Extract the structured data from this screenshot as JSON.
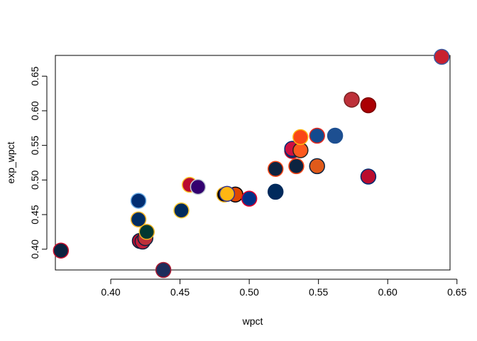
{
  "chart_data": {
    "type": "scatter",
    "title": "",
    "xlabel": "wpct",
    "ylabel": "exp_wpct",
    "xlim": [
      0.36,
      0.645
    ],
    "ylim": [
      0.37,
      0.68
    ],
    "xticks": [
      0.4,
      0.45,
      0.5,
      0.55,
      0.6,
      0.65
    ],
    "yticks": [
      0.4,
      0.45,
      0.5,
      0.55,
      0.6,
      0.65
    ],
    "xtick_labels": [
      "0.40",
      "0.45",
      "0.50",
      "0.55",
      "0.60",
      "0.65"
    ],
    "ytick_labels": [
      "0.40",
      "0.45",
      "0.50",
      "0.55",
      "0.60",
      "0.65"
    ],
    "grid": false,
    "points": [
      {
        "x": 0.364,
        "y": 0.398,
        "fill": "#0C2340",
        "stroke": "#C8102E"
      },
      {
        "x": 0.42,
        "y": 0.47,
        "fill": "#002D72",
        "stroke": "#6CACE4"
      },
      {
        "x": 0.42,
        "y": 0.443,
        "fill": "#002D62",
        "stroke": "#FDB827"
      },
      {
        "x": 0.421,
        "y": 0.412,
        "fill": "#BA0C2F",
        "stroke": "#0C2340"
      },
      {
        "x": 0.423,
        "y": 0.411,
        "fill": "#C41E3A",
        "stroke": "#0C2340"
      },
      {
        "x": 0.425,
        "y": 0.416,
        "fill": "#BD3039",
        "stroke": "#0C2340"
      },
      {
        "x": 0.426,
        "y": 0.425,
        "fill": "#003831",
        "stroke": "#EFB21E"
      },
      {
        "x": 0.438,
        "y": 0.37,
        "fill": "#1D2D5C",
        "stroke": "#A71930"
      },
      {
        "x": 0.451,
        "y": 0.456,
        "fill": "#002B5C",
        "stroke": "#FFC72C"
      },
      {
        "x": 0.457,
        "y": 0.493,
        "fill": "#BA0C2F",
        "stroke": "#FFC72C"
      },
      {
        "x": 0.463,
        "y": 0.49,
        "fill": "#33006F",
        "stroke": "#C4CED4"
      },
      {
        "x": 0.482,
        "y": 0.479,
        "fill": "#000000",
        "stroke": "#FDB827"
      },
      {
        "x": 0.49,
        "y": 0.479,
        "fill": "#DF4601",
        "stroke": "#000000"
      },
      {
        "x": 0.484,
        "y": 0.48,
        "fill": "#FFB612",
        "stroke": "#2E3192"
      },
      {
        "x": 0.5,
        "y": 0.473,
        "fill": "#003087",
        "stroke": "#E4002B"
      },
      {
        "x": 0.519,
        "y": 0.516,
        "fill": "#0C2340",
        "stroke": "#FA4616"
      },
      {
        "x": 0.519,
        "y": 0.483,
        "fill": "#002A5C",
        "stroke": "#002A5C"
      },
      {
        "x": 0.531,
        "y": 0.542,
        "fill": "#002D62",
        "stroke": "#C8102E"
      },
      {
        "x": 0.531,
        "y": 0.545,
        "fill": "#CE1141",
        "stroke": "#002D72"
      },
      {
        "x": 0.534,
        "y": 0.52,
        "fill": "#0C2340",
        "stroke": "#FA4616"
      },
      {
        "x": 0.537,
        "y": 0.543,
        "fill": "#FD5A1E",
        "stroke": "#27251F"
      },
      {
        "x": 0.537,
        "y": 0.562,
        "fill": "#FA4616",
        "stroke": "#FFB612"
      },
      {
        "x": 0.549,
        "y": 0.564,
        "fill": "#134A8E",
        "stroke": "#E8291C"
      },
      {
        "x": 0.549,
        "y": 0.52,
        "fill": "#E05A1A",
        "stroke": "#0C2340"
      },
      {
        "x": 0.562,
        "y": 0.564,
        "fill": "#1D4F91",
        "stroke": "#1D4F91"
      },
      {
        "x": 0.574,
        "y": 0.616,
        "fill": "#BD3039",
        "stroke": "#7A2020"
      },
      {
        "x": 0.586,
        "y": 0.608,
        "fill": "#AB0003",
        "stroke": "#7A0000"
      },
      {
        "x": 0.586,
        "y": 0.505,
        "fill": "#BA0C2F",
        "stroke": "#002D72"
      },
      {
        "x": 0.639,
        "y": 0.678,
        "fill": "#C8202F",
        "stroke": "#3A5BA0"
      }
    ]
  }
}
